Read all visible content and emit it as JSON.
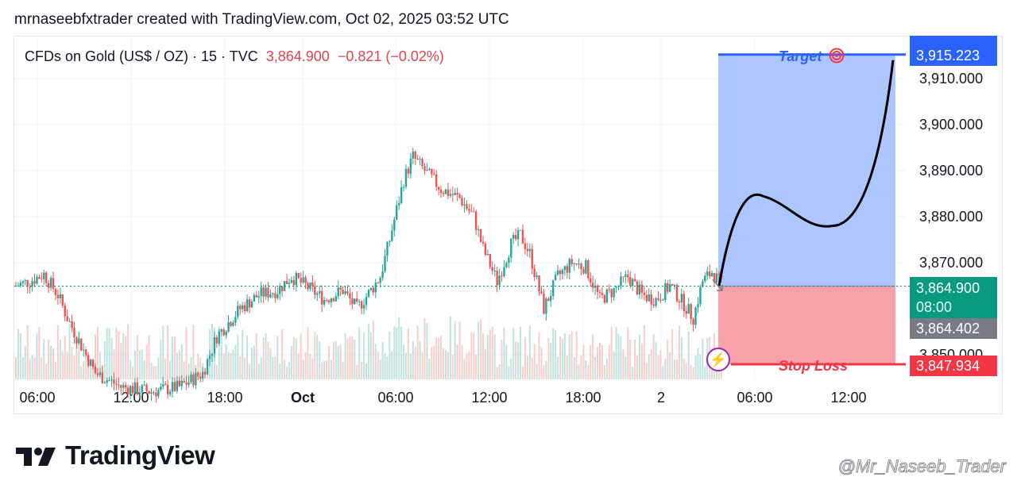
{
  "header": "mrnaseebfxtrader created with TradingView.com, Oct 02, 2025 03:52 UTC",
  "legend": {
    "symbol": "CFDs on Gold (US$ / OZ) · 15 · TVC",
    "price": "3,864.900",
    "change": "−0.821 (−0.02%)"
  },
  "tags": {
    "target_price": "3,915.223",
    "last_price": "3,864.900",
    "countdown": "08:00",
    "prev_price": "3,864.402",
    "stop_price": "3,847.934"
  },
  "position_labels": {
    "target": "Target",
    "stop": "Stop Loss"
  },
  "logo_text": "TradingView",
  "watermark": "@Mr_Naseeb_Trader",
  "icons": [
    "target-icon",
    "lightning-icon",
    "tradingview-logo-icon"
  ],
  "colors": {
    "up": "#26a69a",
    "down": "#ef5350",
    "target_zone": "#aec6ff",
    "stop_zone": "#f7a1a8",
    "target": "#2962ff",
    "stop": "#f23645",
    "last": "#089981"
  },
  "chart_data": {
    "type": "candlestick",
    "symbol": "CFDs on Gold (US$ / OZ)",
    "timeframe": "15",
    "y_ticks": [
      3850,
      3870,
      3880,
      3890,
      3900,
      3910
    ],
    "y_tick_labels": [
      "3,850.000",
      "3,870.000",
      "3,880.000",
      "3,890.000",
      "3,900.000",
      "3,910.000"
    ],
    "ylim": [
      3845,
      3916
    ],
    "x_tick_labels": [
      "06:00",
      "12:00",
      "18:00",
      "Oct",
      "06:00",
      "12:00",
      "18:00",
      "2",
      "06:00",
      "12:00"
    ],
    "anchors": [
      {
        "i": 0,
        "p": 3865
      },
      {
        "i": 6,
        "p": 3866
      },
      {
        "i": 12,
        "p": 3867.5
      },
      {
        "i": 18,
        "p": 3863
      },
      {
        "i": 22,
        "p": 3858
      },
      {
        "i": 28,
        "p": 3852
      },
      {
        "i": 34,
        "p": 3846
      },
      {
        "i": 45,
        "p": 3843
      },
      {
        "i": 58,
        "p": 3842
      },
      {
        "i": 70,
        "p": 3843
      },
      {
        "i": 80,
        "p": 3846
      },
      {
        "i": 86,
        "p": 3854
      },
      {
        "i": 96,
        "p": 3860
      },
      {
        "i": 104,
        "p": 3863
      },
      {
        "i": 112,
        "p": 3864
      },
      {
        "i": 118,
        "p": 3867
      },
      {
        "i": 124,
        "p": 3865
      },
      {
        "i": 132,
        "p": 3862
      },
      {
        "i": 140,
        "p": 3864
      },
      {
        "i": 146,
        "p": 3860
      },
      {
        "i": 152,
        "p": 3864
      },
      {
        "i": 156,
        "p": 3867
      },
      {
        "i": 160,
        "p": 3875
      },
      {
        "i": 166,
        "p": 3888
      },
      {
        "i": 170,
        "p": 3893
      },
      {
        "i": 175,
        "p": 3890
      },
      {
        "i": 182,
        "p": 3886
      },
      {
        "i": 190,
        "p": 3884
      },
      {
        "i": 196,
        "p": 3880
      },
      {
        "i": 200,
        "p": 3873
      },
      {
        "i": 206,
        "p": 3866
      },
      {
        "i": 212,
        "p": 3874
      },
      {
        "i": 216,
        "p": 3876
      },
      {
        "i": 220,
        "p": 3872
      },
      {
        "i": 226,
        "p": 3860
      },
      {
        "i": 232,
        "p": 3867
      },
      {
        "i": 238,
        "p": 3870
      },
      {
        "i": 244,
        "p": 3869
      },
      {
        "i": 250,
        "p": 3862
      },
      {
        "i": 256,
        "p": 3864
      },
      {
        "i": 262,
        "p": 3867
      },
      {
        "i": 268,
        "p": 3863
      },
      {
        "i": 274,
        "p": 3862
      },
      {
        "i": 280,
        "p": 3865
      },
      {
        "i": 286,
        "p": 3861
      },
      {
        "i": 290,
        "p": 3858
      },
      {
        "i": 294,
        "p": 3866
      },
      {
        "i": 298,
        "p": 3868
      },
      {
        "i": 302,
        "p": 3865
      }
    ],
    "position": {
      "direction": "long",
      "entry": 3864.9,
      "target": 3915.223,
      "stop": 3847.934
    },
    "projection": [
      {
        "t": 0.0,
        "p": 3865
      },
      {
        "t": 0.25,
        "p": 3884.5
      },
      {
        "t": 0.65,
        "p": 3878
      },
      {
        "t": 1.0,
        "p": 3914
      }
    ],
    "grid": true
  }
}
